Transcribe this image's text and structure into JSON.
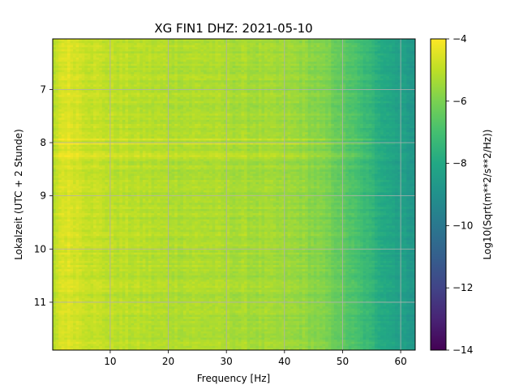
{
  "chart_data": {
    "type": "heatmap",
    "title": "XG FIN1  DHZ: 2021-05-10",
    "xlabel": "Frequency [Hz]",
    "ylabel": "Lokalzeit (UTC + 2 Stunde)",
    "xlim": [
      0.1,
      62.5
    ],
    "ylim": [
      11.9,
      6.05
    ],
    "y_inverted": true,
    "x_ticks": [
      10,
      20,
      30,
      40,
      50,
      60
    ],
    "x_tick_labels": [
      "10",
      "20",
      "30",
      "40",
      "50",
      "60"
    ],
    "y_ticks": [
      7,
      8,
      9,
      10,
      11
    ],
    "y_tick_labels": [
      "7",
      "8",
      "9",
      "10",
      "11"
    ],
    "grid": true,
    "colormap": "viridis",
    "colorbar": {
      "label": "Log10(Sqrt(m**2/s**2/Hz))",
      "min": -14,
      "max": -4,
      "ticks": [
        -4,
        -6,
        -8,
        -10,
        -12,
        -14
      ],
      "tick_labels": [
        "−4",
        "−6",
        "−8",
        "−10",
        "−12",
        "−14"
      ]
    },
    "frequency_profile": {
      "x": [
        0.1,
        1,
        2,
        4,
        6,
        10,
        15,
        20,
        25,
        30,
        35,
        40,
        43,
        45,
        47,
        49,
        51,
        53,
        55,
        57,
        59,
        61,
        62.5
      ],
      "z": [
        -5.4,
        -4.7,
        -4.5,
        -4.6,
        -4.8,
        -5.0,
        -5.1,
        -5.2,
        -5.2,
        -5.3,
        -5.4,
        -5.5,
        -5.6,
        -5.8,
        -6.0,
        -6.3,
        -6.7,
        -7.1,
        -7.5,
        -7.9,
        -8.2,
        -8.5,
        -8.7
      ]
    },
    "bright_time_bands": {
      "y": [
        7.93,
        8.02,
        8.2,
        8.25,
        8.45
      ],
      "z_offset": [
        0.7,
        0.55,
        0.6,
        0.5,
        0.3
      ]
    }
  }
}
